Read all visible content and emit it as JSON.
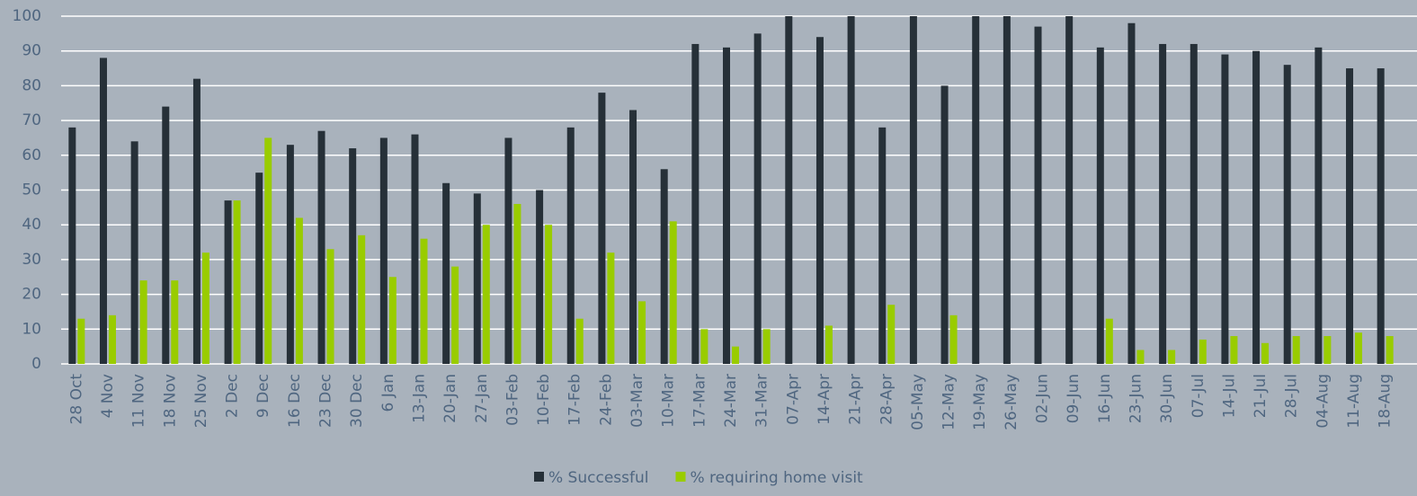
{
  "chart_data": {
    "type": "bar",
    "categories": [
      "28 Oct",
      "4 Nov",
      "11 Nov",
      "18 Nov",
      "25 Nov",
      "2 Dec",
      "9 Dec",
      "16 Dec",
      "23 Dec",
      "30 Dec",
      "6 Jan",
      "13-Jan",
      "20-Jan",
      "27-Jan",
      "03-Feb",
      "10-Feb",
      "17-Feb",
      "24-Feb",
      "03-Mar",
      "10-Mar",
      "17-Mar",
      "24-Mar",
      "31-Mar",
      "07-Apr",
      "14-Apr",
      "21-Apr",
      "28-Apr",
      "05-May",
      "12-May",
      "19-May",
      "26-May",
      "02-Jun",
      "09-Jun",
      "16-Jun",
      "23-Jun",
      "30-Jun",
      "07-Jul",
      "14-Jul",
      "21-Jul",
      "28-Jul",
      "04-Aug",
      "11-Aug",
      "18-Aug"
    ],
    "series": [
      {
        "name": "% Successful",
        "color": "#263038",
        "values": [
          68,
          88,
          64,
          74,
          82,
          47,
          55,
          63,
          67,
          62,
          65,
          66,
          52,
          49,
          65,
          50,
          68,
          78,
          73,
          56,
          92,
          91,
          95,
          100,
          94,
          100,
          68,
          100,
          80,
          100,
          100,
          97,
          100,
          91,
          98,
          92,
          92,
          89,
          90,
          86,
          91,
          85,
          85
        ]
      },
      {
        "name": "% requiring home visit",
        "color": "#99cc00",
        "values": [
          13,
          14,
          24,
          24,
          32,
          47,
          65,
          42,
          33,
          37,
          25,
          36,
          28,
          40,
          46,
          40,
          13,
          32,
          18,
          41,
          10,
          5,
          10,
          0,
          11,
          0,
          17,
          0,
          14,
          0,
          0,
          0,
          0,
          13,
          4,
          4,
          7,
          8,
          6,
          8,
          8,
          9,
          8
        ]
      }
    ],
    "ylim": [
      0,
      100
    ],
    "yticks": [
      0,
      10,
      20,
      30,
      40,
      50,
      60,
      70,
      80,
      90,
      100
    ],
    "grid": true
  }
}
